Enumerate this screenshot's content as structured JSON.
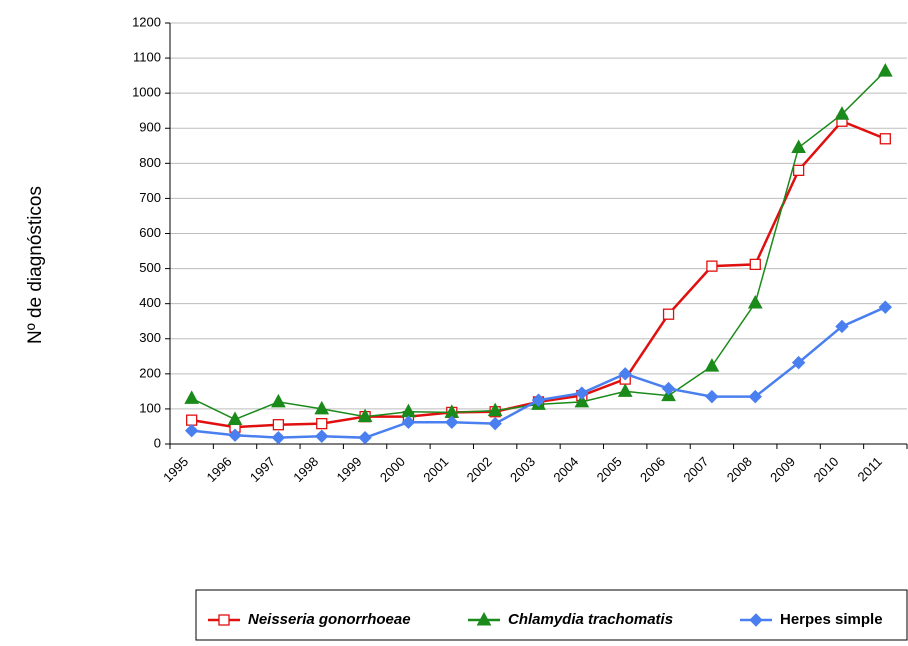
{
  "chart_data": {
    "type": "line",
    "y_label": "Nº de diagnósticos",
    "categories": [
      "1995",
      "1996",
      "1997",
      "1998",
      "1999",
      "2000",
      "2001",
      "2002",
      "2003",
      "2004",
      "2005",
      "2006",
      "2007",
      "2008",
      "2009",
      "2010",
      "2011"
    ],
    "series": [
      {
        "name": "Neisseria gonorrhoeae",
        "color": "#e01010",
        "marker": "square",
        "italic": true,
        "values": [
          68,
          48,
          55,
          58,
          78,
          78,
          90,
          92,
          120,
          138,
          185,
          370,
          507,
          512,
          780,
          920,
          870
        ]
      },
      {
        "name": "Chlamydia trachomatis",
        "color": "#1a8a1a",
        "marker": "triangle",
        "italic": true,
        "values": [
          130,
          70,
          120,
          100,
          78,
          92,
          90,
          95,
          113,
          120,
          150,
          138,
          222,
          402,
          845,
          940,
          1063
        ]
      },
      {
        "name": "Herpes simple",
        "color": "#4a7ff0",
        "marker": "diamond",
        "italic": false,
        "values": [
          38,
          25,
          18,
          22,
          18,
          62,
          62,
          58,
          125,
          145,
          200,
          158,
          135,
          135,
          232,
          335,
          390
        ]
      }
    ],
    "ylim": [
      0,
      1200
    ],
    "yticks": [
      0,
      100,
      200,
      300,
      400,
      500,
      600,
      700,
      800,
      900,
      1000,
      1100,
      1200
    ],
    "grid": true,
    "legend": "bottom"
  }
}
